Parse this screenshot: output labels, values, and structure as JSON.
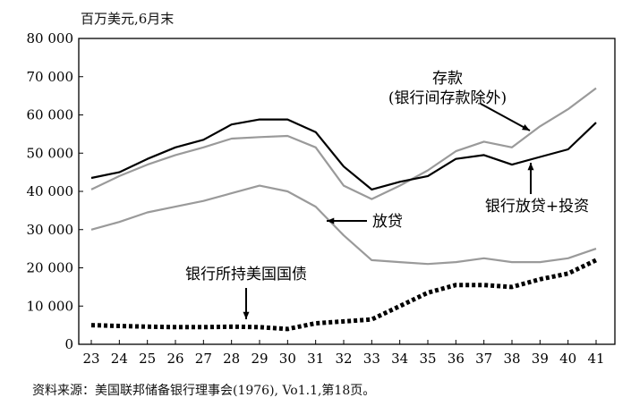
{
  "chart_data": {
    "type": "line",
    "unit_label": "百万美元,6月末",
    "source": "资料来源：美国联邦储备银行理事会(1976), Vo1.1,第18页。",
    "ylim": [
      0,
      80000
    ],
    "y_ticks": [
      0,
      10000,
      20000,
      30000,
      40000,
      50000,
      60000,
      70000,
      80000
    ],
    "y_tick_labels": [
      "0",
      "10 000",
      "20 000",
      "30 000",
      "40 000",
      "50 000",
      "60 000",
      "70 000",
      "80 000"
    ],
    "x_ticks": [
      "23",
      "24",
      "25",
      "26",
      "27",
      "28",
      "29",
      "30",
      "31",
      "32",
      "33",
      "34",
      "35",
      "36",
      "37",
      "38",
      "39",
      "40",
      "41"
    ],
    "x": [
      23,
      24,
      25,
      26,
      27,
      28,
      29,
      30,
      31,
      32,
      33,
      34,
      35,
      36,
      37,
      38,
      39,
      40,
      41
    ],
    "grid": false,
    "series": [
      {
        "name": "存款(银行间存款除外)",
        "label_lines": [
          "存款",
          "(银行间存款除外)"
        ],
        "color": "#9a9a9a",
        "style": "solid",
        "values": [
          40500,
          44000,
          47000,
          49500,
          51500,
          53800,
          54200,
          54500,
          51500,
          41500,
          38000,
          41500,
          45500,
          50500,
          53000,
          51500,
          57000,
          61500,
          67000
        ]
      },
      {
        "name": "银行放贷+投资",
        "label_lines": [
          "银行放贷+投资"
        ],
        "color": "#000000",
        "style": "solid",
        "values": [
          43500,
          45000,
          48500,
          51500,
          53500,
          57500,
          58800,
          58800,
          55500,
          46500,
          40500,
          42500,
          44000,
          48500,
          49500,
          47000,
          49000,
          51000,
          58000
        ]
      },
      {
        "name": "放贷",
        "label_lines": [
          "放贷"
        ],
        "color": "#9a9a9a",
        "style": "solid",
        "values": [
          30000,
          32000,
          34500,
          36000,
          37500,
          39500,
          41500,
          40000,
          36000,
          28500,
          22000,
          21500,
          21000,
          21500,
          22500,
          21500,
          21500,
          22500,
          25000
        ]
      },
      {
        "name": "银行所持美国国债",
        "label_lines": [
          "银行所持美国国债"
        ],
        "color": "#000000",
        "style": "dotted",
        "values": [
          5000,
          4800,
          4600,
          4500,
          4500,
          4600,
          4500,
          4000,
          5500,
          6000,
          6500,
          10000,
          13500,
          15500,
          15500,
          15000,
          17000,
          18500,
          22000
        ]
      }
    ]
  }
}
